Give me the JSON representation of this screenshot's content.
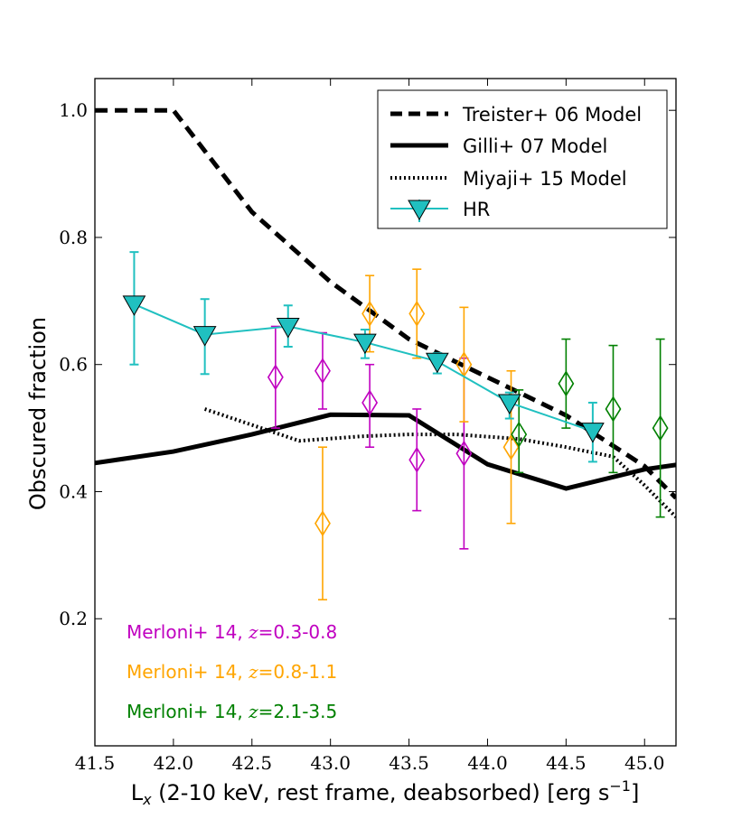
{
  "chart_data": {
    "type": "line",
    "xlabel": "L",
    "xlabel_sub": "x",
    "xlabel_rest": " (2-10 keV, rest frame, deabsorbed) [erg s",
    "xlabel_sup": "−1",
    "xlabel_close": "]",
    "ylabel": "Obscured fraction",
    "xlim": [
      41.5,
      45.2
    ],
    "ylim": [
      0.0,
      1.05
    ],
    "xticks": [
      "41.5",
      "42.0",
      "42.5",
      "43.0",
      "43.5",
      "44.0",
      "44.5",
      "45.0"
    ],
    "yticks": [
      "0.2",
      "0.4",
      "0.6",
      "0.8",
      "1.0"
    ],
    "legend": {
      "position": "top-right",
      "entries": [
        "Treister+ 06 Model",
        "Gilli+ 07 Model",
        "Miyaji+ 15 Model",
        "HR"
      ]
    },
    "colors": {
      "hr": "#20c0c0",
      "merloni_low": "#c000c0",
      "merloni_mid": "#ffa500",
      "merloni_high": "#008000",
      "model": "#000000"
    },
    "series": [
      {
        "name": "Treister+ 06 Model",
        "style": "dashed",
        "x": [
          41.5,
          42.0,
          42.5,
          43.0,
          43.5,
          44.0,
          44.5,
          45.0,
          45.2
        ],
        "y": [
          1.0,
          1.0,
          0.84,
          0.73,
          0.64,
          0.58,
          0.52,
          0.44,
          0.39
        ]
      },
      {
        "name": "Gilli+ 07 Model",
        "style": "solid",
        "x": [
          41.5,
          42.0,
          42.5,
          43.0,
          43.5,
          44.0,
          44.5,
          45.0,
          45.2
        ],
        "y": [
          0.445,
          0.463,
          0.49,
          0.521,
          0.52,
          0.443,
          0.405,
          0.435,
          0.442
        ]
      },
      {
        "name": "Miyaji+ 15 Model",
        "style": "dotted",
        "x": [
          42.2,
          42.5,
          42.8,
          43.2,
          43.5,
          43.8,
          44.2,
          44.5,
          44.8,
          45.0,
          45.2
        ],
        "y": [
          0.53,
          0.505,
          0.48,
          0.487,
          0.49,
          0.49,
          0.483,
          0.47,
          0.455,
          0.41,
          0.36
        ]
      },
      {
        "name": "HR",
        "style": "solid-markers",
        "marker": "triangle-down",
        "x": [
          41.75,
          42.2,
          42.73,
          43.22,
          43.68,
          44.14,
          44.67
        ],
        "y": [
          0.695,
          0.647,
          0.66,
          0.635,
          0.605,
          0.54,
          0.495
        ],
        "yerr_low": [
          0.6,
          0.585,
          0.628,
          0.61,
          0.586,
          0.515,
          0.447
        ],
        "yerr_high": [
          0.777,
          0.703,
          0.693,
          0.655,
          0.618,
          0.556,
          0.54
        ]
      },
      {
        "name": "Merloni+ 14, z=0.3-0.8",
        "marker": "diamond-open",
        "x": [
          42.65,
          42.95,
          43.25,
          43.55,
          43.85
        ],
        "y": [
          0.58,
          0.59,
          0.54,
          0.45,
          0.46
        ],
        "yerr_low": [
          0.5,
          0.53,
          0.47,
          0.37,
          0.31
        ],
        "yerr_high": [
          0.66,
          0.65,
          0.6,
          0.53,
          0.61
        ]
      },
      {
        "name": "Merloni+ 14, z=0.8-1.1",
        "marker": "diamond-open",
        "x": [
          42.95,
          43.25,
          43.55,
          43.85,
          44.15
        ],
        "y": [
          0.35,
          0.68,
          0.68,
          0.6,
          0.47
        ],
        "yerr_low": [
          0.23,
          0.62,
          0.61,
          0.51,
          0.35
        ],
        "yerr_high": [
          0.47,
          0.74,
          0.75,
          0.69,
          0.59
        ]
      },
      {
        "name": "Merloni+ 14, z=2.1-3.5",
        "marker": "diamond-open",
        "x": [
          44.2,
          44.5,
          44.8,
          45.1
        ],
        "y": [
          0.49,
          0.57,
          0.53,
          0.5
        ],
        "yerr_low": [
          0.43,
          0.5,
          0.43,
          0.36
        ],
        "yerr_high": [
          0.56,
          0.64,
          0.63,
          0.64
        ]
      }
    ],
    "annotations": [
      {
        "label": "Merloni+ 14, ",
        "z": "z",
        "range": "=0.3-0.8",
        "color": "#c000c0"
      },
      {
        "label": "Merloni+ 14, ",
        "z": "z",
        "range": "=0.8-1.1",
        "color": "#ffa500"
      },
      {
        "label": "Merloni+ 14, ",
        "z": "z",
        "range": "=2.1-3.5",
        "color": "#008000"
      }
    ]
  }
}
